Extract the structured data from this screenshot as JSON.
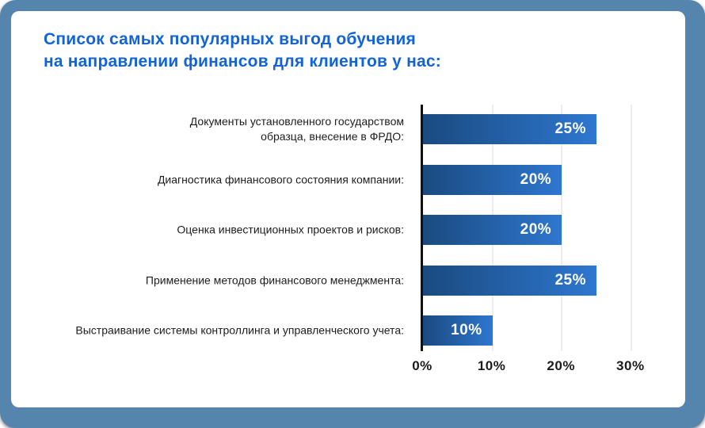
{
  "theme": {
    "frame_background": "#5585AD",
    "card_background": "#FFFFFF",
    "title_color": "#1164D8",
    "bar_gradient_start": "#1A4A80",
    "bar_gradient_end": "#2E77D0",
    "bar_value_color": "#FFFFFF",
    "axis_color": "#111111",
    "gridline_color": "#EDEDED",
    "category_label_color": "#1D1D1F"
  },
  "header": {
    "title": "Список самых популярных выгод обучения\nна направлении финансов для клиентов у нас:"
  },
  "chart_data": {
    "type": "bar",
    "orientation": "horizontal",
    "title": "Список самых популярных выгод обучения на направлении финансов для клиентов у нас:",
    "categories": [
      "Документы установленного государством\nобразца, внесение в ФРДО:",
      "Диагностика финансового состояния компании:",
      "Оценка инвестиционных проектов и рисков:",
      "Применение методов финансового менеджмента:",
      "Выстраивание системы контроллинга и управленческого учета:"
    ],
    "values": [
      25,
      20,
      20,
      25,
      10
    ],
    "value_labels": [
      "25%",
      "20%",
      "20%",
      "25%",
      "10%"
    ],
    "x_ticks": [
      {
        "label": "0%",
        "value": 0
      },
      {
        "label": "10%",
        "value": 10
      },
      {
        "label": "20%",
        "value": 20
      },
      {
        "label": "30%",
        "value": 30
      }
    ],
    "xlim": [
      0,
      37.5
    ],
    "grid": true,
    "legend": false
  }
}
